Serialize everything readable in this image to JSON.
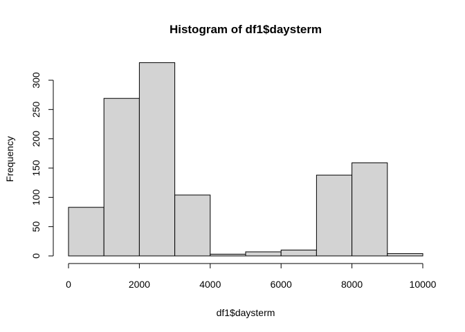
{
  "chart_data": {
    "type": "bar",
    "title": "Histogram of df1$daysterm",
    "xlabel": "df1$daysterm",
    "ylabel": "Frequency",
    "bins": [
      {
        "start": 0,
        "end": 1000,
        "count": 83
      },
      {
        "start": 1000,
        "end": 2000,
        "count": 269
      },
      {
        "start": 2000,
        "end": 3000,
        "count": 330
      },
      {
        "start": 3000,
        "end": 4000,
        "count": 104
      },
      {
        "start": 4000,
        "end": 5000,
        "count": 3
      },
      {
        "start": 5000,
        "end": 6000,
        "count": 7
      },
      {
        "start": 6000,
        "end": 7000,
        "count": 10
      },
      {
        "start": 7000,
        "end": 8000,
        "count": 138
      },
      {
        "start": 8000,
        "end": 9000,
        "count": 159
      },
      {
        "start": 9000,
        "end": 10000,
        "count": 4
      }
    ],
    "xlim": [
      0,
      10000
    ],
    "ylim": [
      0,
      330
    ],
    "xticks": [
      0,
      2000,
      4000,
      6000,
      8000,
      10000
    ],
    "yticks": [
      0,
      50,
      100,
      150,
      200,
      250,
      300
    ],
    "bar_color": "#d3d3d3",
    "grid": false
  }
}
